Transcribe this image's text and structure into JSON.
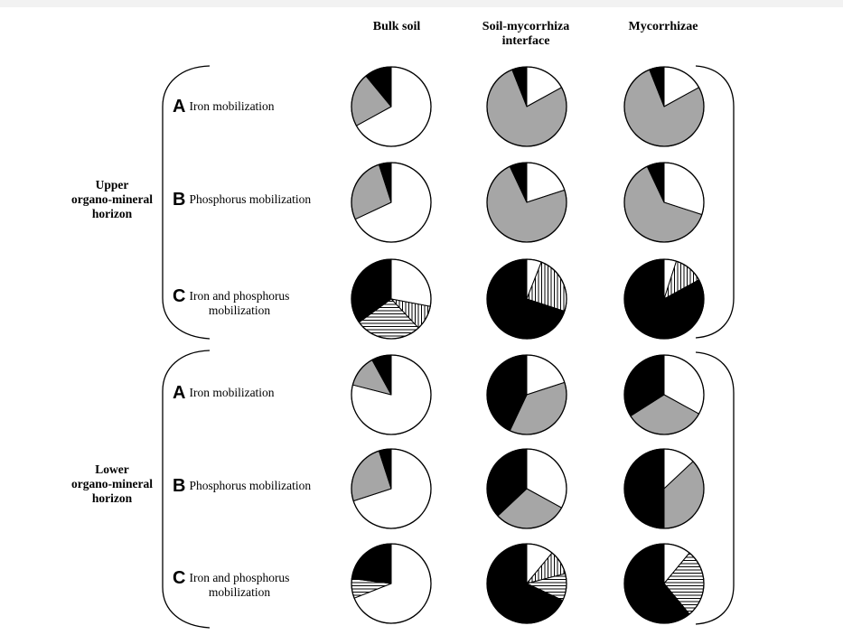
{
  "chart_data": {
    "type": "pie",
    "columns": [
      "Bulk soil",
      "Soil-mycorrhiza interface",
      "Mycorrhizae"
    ],
    "column_header_lines": [
      [
        "Bulk soil"
      ],
      [
        "Soil-mycorrhiza",
        "interface"
      ],
      [
        "Mycorrhizae"
      ]
    ],
    "horizons": [
      {
        "label_lines": [
          "Upper",
          "organo-mineral",
          "horizon"
        ],
        "rows": [
          {
            "letter": "A",
            "label_lines": [
              "Iron mobilization"
            ],
            "pies": [
              [
                {
                  "fill": "white",
                  "value": 67
                },
                {
                  "fill": "gray",
                  "value": 22
                },
                {
                  "fill": "black",
                  "value": 11
                }
              ],
              [
                {
                  "fill": "white",
                  "value": 17
                },
                {
                  "fill": "gray",
                  "value": 77
                },
                {
                  "fill": "black",
                  "value": 6
                }
              ],
              [
                {
                  "fill": "white",
                  "value": 17
                },
                {
                  "fill": "gray",
                  "value": 77
                },
                {
                  "fill": "black",
                  "value": 6
                }
              ]
            ]
          },
          {
            "letter": "B",
            "label_lines": [
              "Phosphorus mobilization"
            ],
            "pies": [
              [
                {
                  "fill": "white",
                  "value": 68
                },
                {
                  "fill": "gray",
                  "value": 27
                },
                {
                  "fill": "black",
                  "value": 5
                }
              ],
              [
                {
                  "fill": "white",
                  "value": 20
                },
                {
                  "fill": "gray",
                  "value": 73
                },
                {
                  "fill": "black",
                  "value": 7
                }
              ],
              [
                {
                  "fill": "white",
                  "value": 30
                },
                {
                  "fill": "gray",
                  "value": 63
                },
                {
                  "fill": "black",
                  "value": 7
                }
              ]
            ]
          },
          {
            "letter": "C",
            "label_lines": [
              "Iron and phosphorus",
              "mobilization"
            ],
            "pies": [
              [
                {
                  "fill": "white",
                  "value": 28
                },
                {
                  "fill": "vertical",
                  "value": 10
                },
                {
                  "fill": "horizontal",
                  "value": 27
                },
                {
                  "fill": "black",
                  "value": 35
                }
              ],
              [
                {
                  "fill": "white",
                  "value": 6
                },
                {
                  "fill": "vertical",
                  "value": 24
                },
                {
                  "fill": "black",
                  "value": 70
                }
              ],
              [
                {
                  "fill": "white",
                  "value": 5
                },
                {
                  "fill": "vertical",
                  "value": 12
                },
                {
                  "fill": "black",
                  "value": 83
                }
              ]
            ]
          }
        ]
      },
      {
        "label_lines": [
          "Lower",
          "organo-mineral",
          "horizon"
        ],
        "rows": [
          {
            "letter": "A",
            "label_lines": [
              "Iron mobilization"
            ],
            "pies": [
              [
                {
                  "fill": "white",
                  "value": 79
                },
                {
                  "fill": "gray",
                  "value": 13
                },
                {
                  "fill": "black",
                  "value": 8
                }
              ],
              [
                {
                  "fill": "white",
                  "value": 20
                },
                {
                  "fill": "gray",
                  "value": 37
                },
                {
                  "fill": "black",
                  "value": 43
                }
              ],
              [
                {
                  "fill": "white",
                  "value": 33
                },
                {
                  "fill": "gray",
                  "value": 33
                },
                {
                  "fill": "black",
                  "value": 34
                }
              ]
            ]
          },
          {
            "letter": "B",
            "label_lines": [
              "Phosphorus mobilization"
            ],
            "pies": [
              [
                {
                  "fill": "white",
                  "value": 70
                },
                {
                  "fill": "gray",
                  "value": 25
                },
                {
                  "fill": "black",
                  "value": 5
                }
              ],
              [
                {
                  "fill": "white",
                  "value": 33
                },
                {
                  "fill": "gray",
                  "value": 30
                },
                {
                  "fill": "black",
                  "value": 37
                }
              ],
              [
                {
                  "fill": "white",
                  "value": 13
                },
                {
                  "fill": "gray",
                  "value": 37
                },
                {
                  "fill": "black",
                  "value": 50
                }
              ]
            ]
          },
          {
            "letter": "C",
            "label_lines": [
              "Iron and phosphorus",
              "mobilization"
            ],
            "pies": [
              [
                {
                  "fill": "white",
                  "value": 69
                },
                {
                  "fill": "horizontal",
                  "value": 8
                },
                {
                  "fill": "black",
                  "value": 23
                }
              ],
              [
                {
                  "fill": "white",
                  "value": 11
                },
                {
                  "fill": "vertical",
                  "value": 10
                },
                {
                  "fill": "horizontal",
                  "value": 11
                },
                {
                  "fill": "black",
                  "value": 68
                }
              ],
              [
                {
                  "fill": "white",
                  "value": 11
                },
                {
                  "fill": "horizontal",
                  "value": 28
                },
                {
                  "fill": "black",
                  "value": 61
                }
              ]
            ]
          }
        ]
      }
    ]
  },
  "colors": {
    "white": "#ffffff",
    "gray": "#a6a6a6",
    "black": "#000000",
    "stroke": "#000000"
  }
}
